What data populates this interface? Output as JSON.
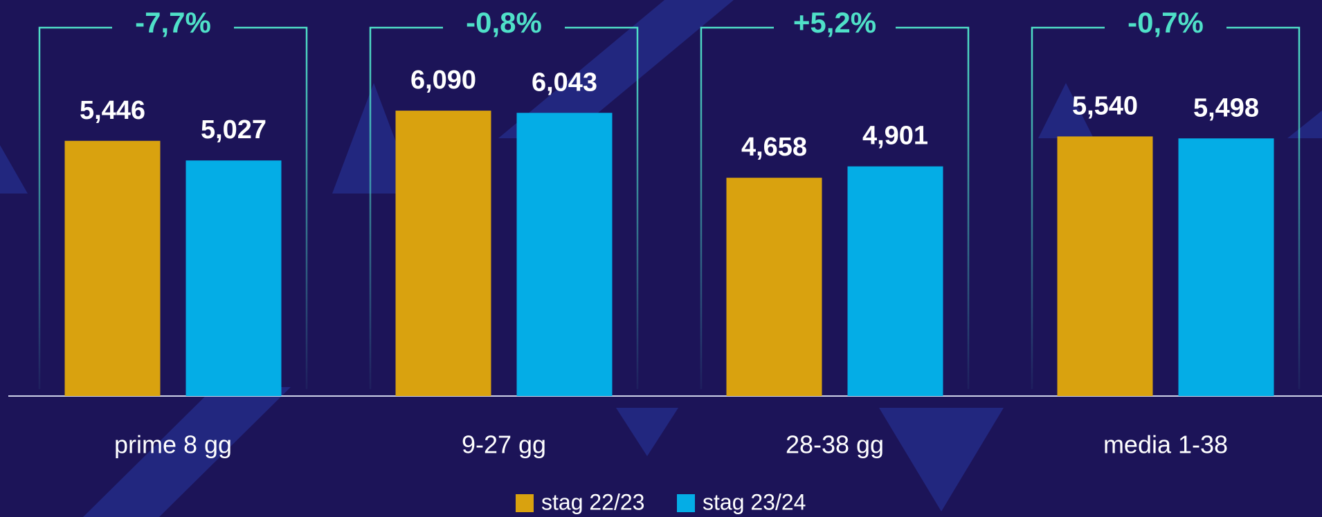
{
  "chart_data": {
    "type": "bar",
    "categories": [
      "prime 8 gg",
      "9-27 gg",
      "28-38 gg",
      "media 1-38"
    ],
    "annotations": [
      "-7,7%",
      "-0,8%",
      "+5,2%",
      "-0,7%"
    ],
    "series": [
      {
        "name": "stag 22/23",
        "color": "#d9a20f",
        "values": [
          5.446,
          6.09,
          4.658,
          5.54
        ],
        "value_labels": [
          "5,446",
          "6,090",
          "4,658",
          "5,540"
        ]
      },
      {
        "name": "stag 23/24",
        "color": "#04ade6",
        "values": [
          5.027,
          6.043,
          4.901,
          5.498
        ],
        "value_labels": [
          "5,027",
          "6,043",
          "4,901",
          "5,498"
        ]
      }
    ]
  }
}
